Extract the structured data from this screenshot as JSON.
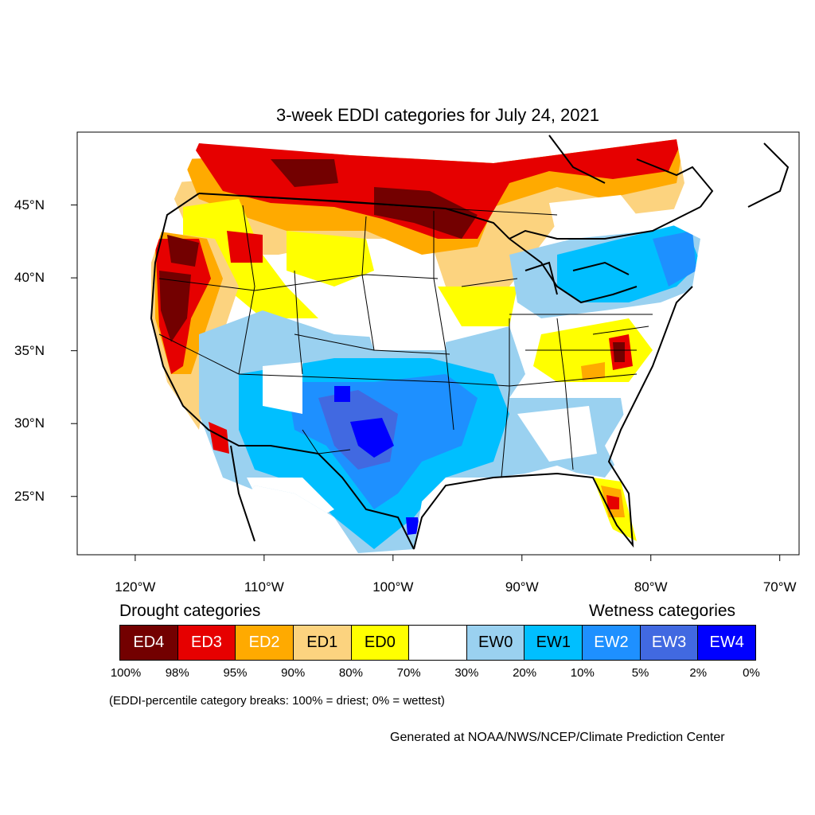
{
  "title": "3-week EDDI categories for July 24, 2021",
  "map": {
    "projection": "lat-lon",
    "lon_range": [
      -124.5,
      -68.5
    ],
    "lat_range": [
      21,
      50
    ],
    "x_ticks": [
      "120°W",
      "110°W",
      "100°W",
      "90°W",
      "80°W",
      "70°W"
    ],
    "y_ticks": [
      "45°N",
      "40°N",
      "35°N",
      "30°N",
      "25°N"
    ],
    "colors": {
      "ED4": "#730000",
      "ED3": "#e60000",
      "ED2": "#ffaa00",
      "ED1": "#fcd37f",
      "ED0": "#ffff00",
      "neutral": "#ffffff",
      "EW0": "#9ad1f0",
      "EW1": "#00bfff",
      "EW2": "#1e90ff",
      "EW3": "#4169e1",
      "EW4": "#0000ff"
    }
  },
  "legend": {
    "drought_title": "Drought categories",
    "wetness_title": "Wetness categories",
    "categories": [
      {
        "label": "ED4",
        "color": "#730000",
        "text_color": "#ffffff"
      },
      {
        "label": "ED3",
        "color": "#e60000",
        "text_color": "#ffffff"
      },
      {
        "label": "ED2",
        "color": "#ffaa00",
        "text_color": "#ffffff"
      },
      {
        "label": "ED1",
        "color": "#fcd37f",
        "text_color": "#000000"
      },
      {
        "label": "ED0",
        "color": "#ffff00",
        "text_color": "#000000"
      },
      {
        "label": "",
        "color": "#ffffff",
        "text_color": "#000000"
      },
      {
        "label": "EW0",
        "color": "#9ad1f0",
        "text_color": "#000000"
      },
      {
        "label": "EW1",
        "color": "#00bfff",
        "text_color": "#000000"
      },
      {
        "label": "EW2",
        "color": "#1e90ff",
        "text_color": "#ffffff"
      },
      {
        "label": "EW3",
        "color": "#4169e1",
        "text_color": "#ffffff"
      },
      {
        "label": "EW4",
        "color": "#0000ff",
        "text_color": "#ffffff"
      }
    ],
    "breaks": [
      "100%",
      "98%",
      "95%",
      "90%",
      "80%",
      "70%",
      "30%",
      "20%",
      "10%",
      "5%",
      "2%",
      "0%"
    ]
  },
  "note": "(EDDI-percentile category breaks: 100% = driest; 0% = wettest)",
  "credit": "Generated at NOAA/NWS/NCEP/Climate Prediction Center"
}
